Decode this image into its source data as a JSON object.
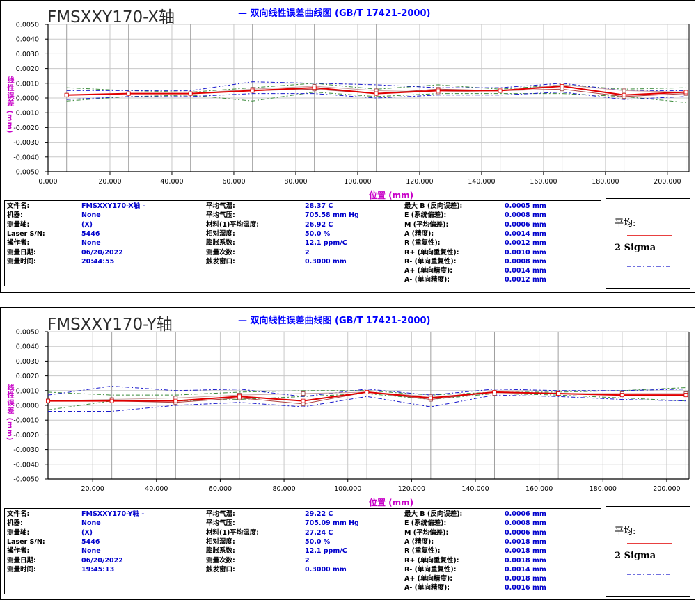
{
  "charts": [
    {
      "axis_name": "FMSXXY170-X轴",
      "title": "— 双向线性误差曲线图  (GB/T 17421-2000)",
      "ylabel": "线性误差 (mm)",
      "xlabel": "位置 (mm)",
      "y_ticks": [
        "0.0050",
        "0.0040",
        "0.0030",
        "0.0020",
        "0.0010",
        "0.0000",
        "-0.0010",
        "-0.0020",
        "-0.0030",
        "-0.0040",
        "-0.0050"
      ],
      "x_ticks": [
        "0.000",
        "20.000",
        "40.000",
        "60.000",
        "80.000",
        "100.000",
        "120.000",
        "140.000",
        "160.000",
        "180.000",
        "200.000"
      ],
      "info_left": [
        {
          "k": "文件名:",
          "v": "FMSXXY170-X轴 -"
        },
        {
          "k": "机器:",
          "v": "None"
        },
        {
          "k": "测量轴:",
          "v": "(X)"
        },
        {
          "k": "Laser S/N:",
          "v": "5446"
        },
        {
          "k": "操作者:",
          "v": "None"
        },
        {
          "k": "测量日期:",
          "v": "06/20/2022"
        },
        {
          "k": "测量时间:",
          "v": "20:44:55"
        }
      ],
      "info_mid": [
        {
          "k": "平均气温:",
          "v": "28.37 C"
        },
        {
          "k": "平均气压:",
          "v": "705.58 mm Hg"
        },
        {
          "k": "材料(1)平均温度:",
          "v": "26.92 C"
        },
        {
          "k": "相对湿度:",
          "v": "50.0 %"
        },
        {
          "k": "膨胀系数:",
          "v": "12.1 ppm/C"
        },
        {
          "k": "测量次数:",
          "v": "2"
        },
        {
          "k": "触发窗口:",
          "v": "0.3000 mm"
        }
      ],
      "info_right": [
        {
          "k": "最大 B (反向误差):",
          "v": "0.0005 mm"
        },
        {
          "k": "E (系统偏差):",
          "v": "0.0008 mm"
        },
        {
          "k": "M (平均偏差):",
          "v": "0.0006 mm"
        },
        {
          "k": "A (精度):",
          "v": "0.0014 mm"
        },
        {
          "k": "R (重复性):",
          "v": "0.0012 mm"
        },
        {
          "k": "R+ (单向重复性):",
          "v": "0.0010 mm"
        },
        {
          "k": "R- (单向重复性):",
          "v": "0.0008 mm"
        },
        {
          "k": "A+ (单向精度):",
          "v": "0.0014 mm"
        },
        {
          "k": "A- (单向精度):",
          "v": "0.0012 mm"
        }
      ],
      "legend": {
        "mean_label": "平均:",
        "sigma_label": "2 Sigma"
      }
    },
    {
      "axis_name": "FMSXXY170-Y轴",
      "title": "— 双向线性误差曲线图  (GB/T 17421-2000)",
      "ylabel": "线性误差 (mm)",
      "xlabel": "位置 (mm)",
      "y_ticks": [
        "0.0050",
        "0.0040",
        "0.0030",
        "0.0020",
        "0.0010",
        "0.0000",
        "-0.0010",
        "-0.0020",
        "-0.0030",
        "-0.0040",
        "-0.0050"
      ],
      "x_ticks": [
        "20.000",
        "40.000",
        "60.000",
        "80.000",
        "100.000",
        "120.000",
        "140.000",
        "160.000",
        "180.000",
        "200.000"
      ],
      "info_left": [
        {
          "k": "文件名:",
          "v": "FMSXXY170-Y轴 -"
        },
        {
          "k": "机器:",
          "v": "None"
        },
        {
          "k": "测量轴:",
          "v": "(X)"
        },
        {
          "k": "Laser S/N:",
          "v": "5446"
        },
        {
          "k": "操作者:",
          "v": "None"
        },
        {
          "k": "测量日期:",
          "v": "06/20/2022"
        },
        {
          "k": "测量时间:",
          "v": "19:45:13"
        }
      ],
      "info_mid": [
        {
          "k": "平均气温:",
          "v": "29.22 C"
        },
        {
          "k": "平均气压:",
          "v": "705.09 mm Hg"
        },
        {
          "k": "材料(1)平均温度:",
          "v": "27.24 C"
        },
        {
          "k": "相对湿度:",
          "v": "50.0 %"
        },
        {
          "k": "膨胀系数:",
          "v": "12.1 ppm/C"
        },
        {
          "k": "测量次数:",
          "v": "2"
        },
        {
          "k": "触发窗口:",
          "v": "0.3000 mm"
        }
      ],
      "info_right": [
        {
          "k": "最大 B (反向误差):",
          "v": "0.0006 mm"
        },
        {
          "k": "E (系统偏差):",
          "v": "0.0008 mm"
        },
        {
          "k": "M (平均偏差):",
          "v": "0.0006 mm"
        },
        {
          "k": "A (精度):",
          "v": "0.0018 mm"
        },
        {
          "k": "R (重复性):",
          "v": "0.0018 mm"
        },
        {
          "k": "R+ (单向重复性):",
          "v": "0.0018 mm"
        },
        {
          "k": "R- (单向重复性):",
          "v": "0.0014 mm"
        },
        {
          "k": "A+ (单向精度):",
          "v": "0.0018 mm"
        },
        {
          "k": "A- (单向精度):",
          "v": "0.0016 mm"
        }
      ],
      "legend": {
        "mean_label": "平均:",
        "sigma_label": "2 Sigma"
      }
    }
  ],
  "colors": {
    "mean": "#e00000",
    "sigma_blue": "#1a1acc",
    "sigma_green": "#3a8a3a",
    "grid": "#c8c8c8",
    "fwd": "#c8a0a0"
  },
  "chart_data": [
    {
      "type": "line",
      "title": "— 双向线性误差曲线图  (GB/T 17421-2000)",
      "xlabel": "位置 (mm)",
      "ylabel": "线性误差 (mm)",
      "xlim": [
        0,
        207
      ],
      "ylim": [
        -0.005,
        0.005
      ],
      "grid": true,
      "legend_position": "right",
      "x": [
        6,
        26,
        46,
        66,
        86,
        106,
        126,
        146,
        166,
        186,
        206
      ],
      "series": [
        {
          "name": "平均:",
          "role": "mean",
          "values": [
            0.0002,
            0.0003,
            0.0003,
            0.0005,
            0.0007,
            0.0003,
            0.0005,
            0.0005,
            0.0008,
            0.0002,
            0.0004
          ]
        },
        {
          "role": "upper_blue",
          "values": [
            0.0005,
            0.0005,
            0.0005,
            0.0011,
            0.001,
            0.0009,
            0.0007,
            0.0007,
            0.001,
            0.0005,
            0.0005
          ]
        },
        {
          "role": "lower_blue",
          "values": [
            -0.0001,
            0.0001,
            0.0001,
            0.0003,
            0.0003,
            -0.0,
            0.0002,
            0.0002,
            0.0004,
            -0.0001,
            0.0001
          ]
        },
        {
          "role": "upper_green",
          "values": [
            0.0007,
            0.0005,
            0.0004,
            0.0007,
            0.001,
            0.0006,
            0.0009,
            0.0006,
            0.0009,
            0.0006,
            0.0007
          ]
        },
        {
          "role": "lower_green",
          "values": [
            -0.0002,
            0.0001,
            0.0002,
            -0.0002,
            0.0004,
            0.0001,
            0.0003,
            0.0003,
            0.0003,
            0.0001,
            -0.0003
          ]
        },
        {
          "role": "forward",
          "values": [
            0.0002,
            0.0003,
            0.0003,
            0.0006,
            0.0008,
            0.0005,
            0.0004,
            0.0005,
            0.0009,
            0.0005,
            0.0004
          ]
        },
        {
          "role": "reverse",
          "values": [
            0.0002,
            0.0003,
            0.0003,
            0.0005,
            0.0006,
            0.0003,
            0.0006,
            0.0005,
            0.0006,
            0.0001,
            0.0003
          ]
        }
      ]
    },
    {
      "type": "line",
      "title": "— 双向线性误差曲线图  (GB/T 17421-2000)",
      "xlabel": "位置 (mm)",
      "ylabel": "线性误差 (mm)",
      "xlim": [
        6,
        207
      ],
      "ylim": [
        -0.005,
        0.005
      ],
      "grid": true,
      "legend_position": "right",
      "x": [
        6,
        26,
        46,
        66,
        86,
        106,
        126,
        146,
        166,
        186,
        206
      ],
      "series": [
        {
          "name": "平均:",
          "role": "mean",
          "values": [
            0.0003,
            0.0003,
            0.0003,
            0.0006,
            0.0003,
            0.0009,
            0.0005,
            0.0009,
            0.0008,
            0.0007,
            0.0007
          ]
        },
        {
          "role": "upper_blue",
          "values": [
            0.0007,
            0.0013,
            0.001,
            0.0011,
            0.0006,
            0.0011,
            0.0007,
            0.0011,
            0.001,
            0.001,
            0.0011
          ]
        },
        {
          "role": "lower_blue",
          "values": [
            -0.0004,
            -0.0004,
            -0.0,
            0.0002,
            -0.0001,
            0.0006,
            -0.0001,
            0.0007,
            0.0006,
            0.0004,
            0.0003
          ]
        },
        {
          "role": "upper_green",
          "values": [
            0.0009,
            0.0007,
            0.0007,
            0.0009,
            0.001,
            0.001,
            0.0007,
            0.0009,
            0.0009,
            0.001,
            0.0012
          ]
        },
        {
          "role": "lower_green",
          "values": [
            -0.0003,
            0.0003,
            0.0003,
            0.0004,
            0.0006,
            0.0008,
            0.0004,
            0.0008,
            0.0007,
            0.0005,
            0.0003
          ]
        },
        {
          "role": "forward",
          "values": [
            0.0003,
            0.0004,
            0.0005,
            0.0007,
            0.0008,
            0.0009,
            0.0006,
            0.0008,
            0.0008,
            0.0008,
            0.0008
          ]
        },
        {
          "role": "reverse",
          "values": [
            0.0003,
            0.0003,
            0.0002,
            0.0005,
            0.0001,
            0.0009,
            0.0004,
            0.0009,
            0.0008,
            0.0007,
            0.0007
          ]
        }
      ]
    }
  ]
}
